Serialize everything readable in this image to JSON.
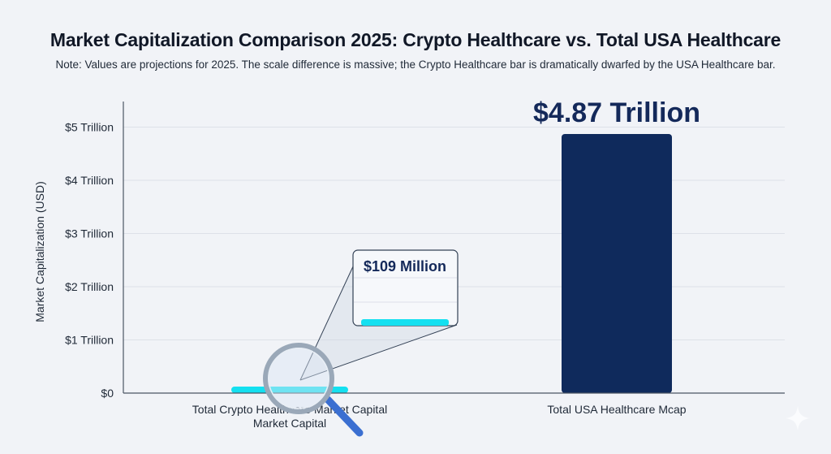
{
  "header": {
    "title": "Market Capitalization Comparison 2025: Crypto Healthcare vs. Total USA Healthcare",
    "subtitle": "Note: Values are projections for 2025. The scale difference is massive; the Crypto Healthcare bar is dramatically dwarfed by the USA Healthcare bar."
  },
  "chart_data": {
    "type": "bar",
    "title": "Market Capitalization Comparison 2025: Crypto Healthcare vs. Total USA Healthcare",
    "subtitle": "Note: Values are projections for 2025. The scale difference is massive; the Crypto Healthcare bar is dramatically dwarfed by the USA Healthcare bar.",
    "xlabel": "",
    "ylabel": "Market Capitalization (USD)",
    "ylim": [
      0,
      5.5
    ],
    "y_unit": "Trillion USD",
    "yticks": [
      0,
      1,
      2,
      3,
      4,
      5
    ],
    "ytick_labels": [
      "$0",
      "$1 Trillion",
      "$2 Trillion",
      "$3 Trillion",
      "$4 Trillion",
      "$5 Trillion"
    ],
    "grid": true,
    "categories": [
      "Total Crypto Healthcare Market Capital",
      "Total USA Healthcare Mcap"
    ],
    "category_label_lines": [
      [
        "Total Crypto Healthcare Market Capital",
        "Market Capital"
      ],
      [
        "Total USA Healthcare Mcap"
      ]
    ],
    "values": [
      0.000109,
      4.87
    ],
    "value_labels": [
      "$109 Million",
      "$4.87 Trillion"
    ],
    "colors": [
      "#14e0f0",
      "#0f2a5c"
    ],
    "annotations": [
      {
        "type": "magnifier-inset",
        "target": "Total Crypto Healthcare Market Capital",
        "text": "$109 Million"
      }
    ]
  }
}
